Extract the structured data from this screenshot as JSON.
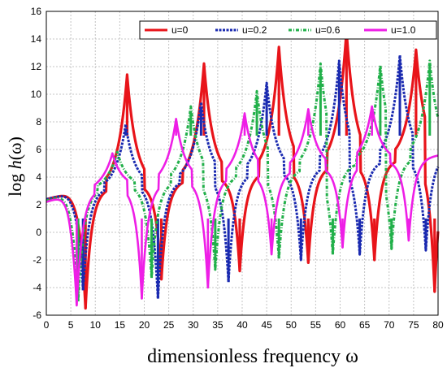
{
  "chart_data": {
    "type": "line",
    "title": "",
    "xlabel": "dimensionless frequency ω",
    "ylabel_prefix": "log ",
    "ylabel_italic": "h",
    "ylabel_suffix": "(ω)",
    "xlim": [
      0,
      80
    ],
    "ylim": [
      -6,
      16
    ],
    "x_ticks": [
      "0",
      "5",
      "10",
      "15",
      "20",
      "25",
      "30",
      "35",
      "40",
      "45",
      "50",
      "55",
      "60",
      "65",
      "70",
      "75",
      "80"
    ],
    "y_ticks": [
      "-6",
      "-4",
      "-2",
      "0",
      "2",
      "4",
      "6",
      "8",
      "10",
      "12",
      "14",
      "16"
    ],
    "grid": true,
    "legend_position": "top-right",
    "series": [
      {
        "name": "u=0",
        "color": "#e8141a",
        "style": "solid",
        "start_value": 2.4,
        "peaks": [
          [
            16.5,
            11.1
          ],
          [
            32.2,
            11.9
          ],
          [
            47.5,
            13.1
          ],
          [
            61.3,
            14.3
          ],
          [
            75.5,
            12.9
          ]
        ],
        "dips": [
          [
            8.0,
            -5.5
          ],
          [
            23.5,
            -3.4
          ],
          [
            39.5,
            -2.8
          ],
          [
            53.5,
            -2.2
          ],
          [
            67.0,
            -2.0
          ],
          [
            79.3,
            -4.3
          ]
        ]
      },
      {
        "name": "u=0.2",
        "color": "#1a2ab0",
        "style": "dashed",
        "start_value": 2.4,
        "peaks": [
          [
            16.2,
            7.5
          ],
          [
            31.6,
            9.1
          ],
          [
            45.0,
            10.5
          ],
          [
            59.8,
            12.1
          ],
          [
            72.2,
            12.5
          ]
        ],
        "dips": [
          [
            7.5,
            -4.2
          ],
          [
            22.8,
            -4.8
          ],
          [
            37.2,
            -3.6
          ],
          [
            52.0,
            -2.0
          ],
          [
            64.0,
            -1.6
          ],
          [
            77.5,
            -1.3
          ]
        ]
      },
      {
        "name": "u=0.6",
        "color": "#22b04a",
        "style": "dash-dot",
        "start_value": 2.3,
        "peaks": [
          [
            14.5,
            5.5
          ],
          [
            29.5,
            8.8
          ],
          [
            43.0,
            9.9
          ],
          [
            56.0,
            11.9
          ],
          [
            68.2,
            11.8
          ],
          [
            78.3,
            12.1
          ]
        ],
        "dips": [
          [
            6.5,
            -5.0
          ],
          [
            21.5,
            -3.3
          ],
          [
            34.5,
            -2.7
          ],
          [
            47.5,
            -1.9
          ],
          [
            58.5,
            -1.6
          ],
          [
            70.5,
            -1.2
          ]
        ]
      },
      {
        "name": "u=1.0",
        "color": "#ee1ee6",
        "style": "solid",
        "start_value": 2.2,
        "peaks": [
          [
            13.5,
            5.4
          ],
          [
            26.5,
            7.9
          ],
          [
            40.5,
            8.3
          ],
          [
            53.5,
            8.6
          ],
          [
            66.5,
            8.8
          ]
        ],
        "dips": [
          [
            6.2,
            -5.3
          ],
          [
            19.5,
            -4.8
          ],
          [
            33.0,
            -4.0
          ],
          [
            46.0,
            -1.6
          ],
          [
            60.5,
            -1.1
          ],
          [
            74.0,
            -0.6
          ]
        ]
      }
    ]
  }
}
